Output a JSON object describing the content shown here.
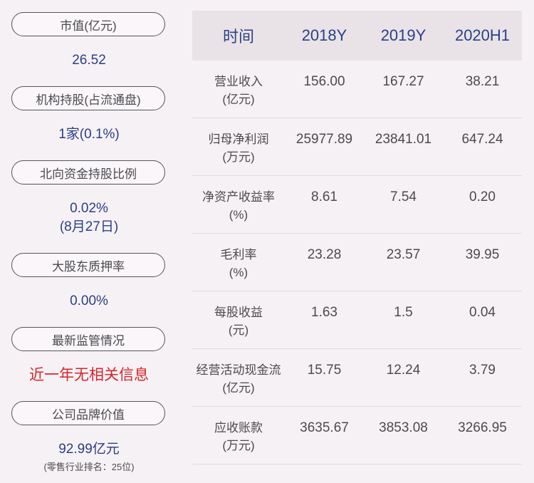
{
  "left": {
    "items": [
      {
        "label": "市值(亿元)",
        "value": "26.52"
      },
      {
        "label": "机构持股(占流通盘)",
        "value": "1家(0.1%)"
      },
      {
        "label": "北向资金持股比例",
        "value": "0.02%",
        "value2": "(8月27日)"
      },
      {
        "label": "大股东质押率",
        "value": "0.00%"
      },
      {
        "label": "最新监管情况",
        "value": "近一年无相关信息"
      },
      {
        "label": "公司品牌价值",
        "value": "92.99亿元",
        "note": "(零售行业排名：25位)"
      }
    ]
  },
  "table": {
    "headers": [
      "时间",
      "2018Y",
      "2019Y",
      "2020H1"
    ],
    "rows": [
      {
        "name": "营业收入",
        "unit": "(亿元)",
        "v": [
          "156.00",
          "167.27",
          "38.21"
        ]
      },
      {
        "name": "归母净利润",
        "unit": "(万元)",
        "v": [
          "25977.89",
          "23841.01",
          "647.24"
        ]
      },
      {
        "name": "净资产收益率",
        "unit": "(%)",
        "v": [
          "8.61",
          "7.54",
          "0.20"
        ]
      },
      {
        "name": "毛利率",
        "unit": "(%)",
        "v": [
          "23.28",
          "23.57",
          "39.95"
        ]
      },
      {
        "name": "每股收益",
        "unit": "(元)",
        "v": [
          "1.63",
          "1.5",
          "0.04"
        ]
      },
      {
        "name": "经营活动现金流",
        "unit": "(亿元)",
        "v": [
          "15.75",
          "12.24",
          "3.79"
        ]
      },
      {
        "name": "应收账款",
        "unit": "(万元)",
        "v": [
          "3635.67",
          "3853.08",
          "3266.95"
        ]
      }
    ]
  },
  "colors": {
    "accent": "#2b3f86",
    "alert": "#d4262d",
    "text": "#4a4b50",
    "background": "#f6f1f4"
  }
}
